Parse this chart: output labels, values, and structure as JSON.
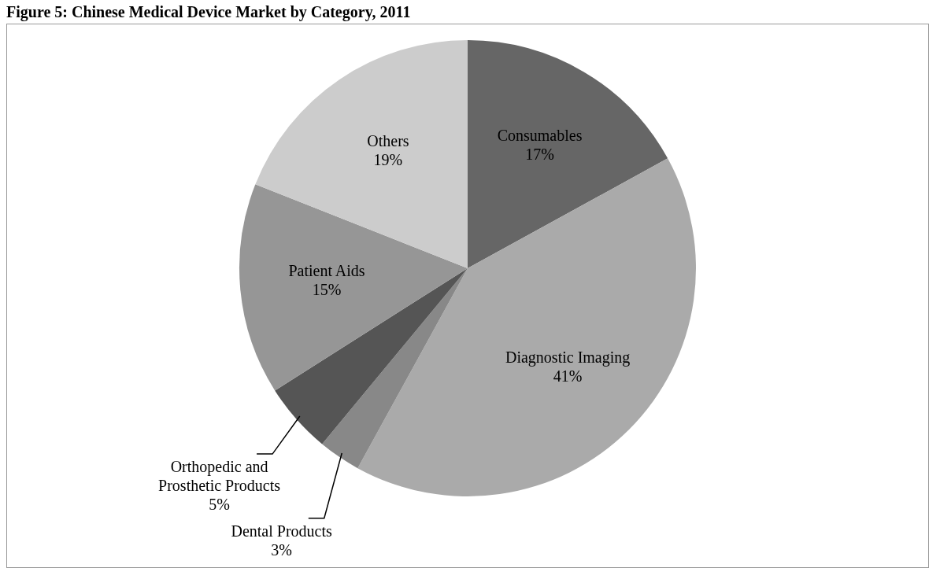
{
  "chart_data": {
    "type": "pie",
    "title": "Figure 5: Chinese Medical Device Market by Category, 2011",
    "categories": [
      "Consumables",
      "Diagnostic Imaging",
      "Dental Products",
      "Orthopedic and Prosthetic Products",
      "Patient Aids",
      "Others"
    ],
    "values": [
      17,
      41,
      3,
      5,
      15,
      19
    ],
    "value_labels": [
      "17%",
      "41%",
      "3%",
      "5%",
      "15%",
      "19%"
    ],
    "colors": [
      "#666666",
      "#aaaaaa",
      "#888888",
      "#555555",
      "#969696",
      "#cccccc"
    ],
    "legend": false
  }
}
